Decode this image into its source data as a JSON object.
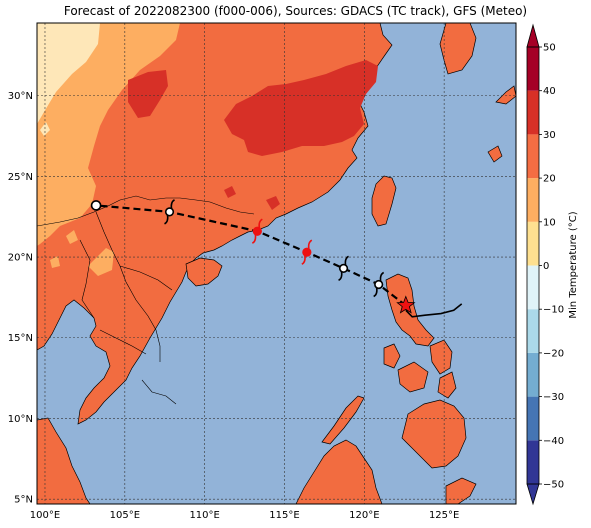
{
  "title": "Forecast of 2022082300 (f000-006), Sources: GDACS (TC track), GFS (Meteo)",
  "map": {
    "lon_range": [
      99.5,
      129.5
    ],
    "lat_range": [
      4.7,
      34.5
    ],
    "lon_ticks": [
      100,
      105,
      110,
      115,
      120,
      125
    ],
    "lon_tick_labels": [
      "100°E",
      "105°E",
      "110°E",
      "115°E",
      "120°E",
      "125°E"
    ],
    "lat_ticks": [
      5,
      10,
      15,
      20,
      25,
      30
    ],
    "lat_tick_labels": [
      "5°N",
      "10°N",
      "15°N",
      "20°N",
      "25°N",
      "30°N"
    ],
    "grid": true,
    "ocean_color": "#92b3d8"
  },
  "colorbar": {
    "label": "Min Temperature (°C)",
    "ticks": [
      -50,
      -40,
      -30,
      -20,
      -10,
      0,
      10,
      20,
      30,
      40,
      50
    ],
    "tick_labels": [
      "−50",
      "−40",
      "−30",
      "−20",
      "−10",
      "0",
      "10",
      "20",
      "30",
      "40",
      "50"
    ],
    "colors": [
      "#313695",
      "#4575b4",
      "#74add1",
      "#abd9e9",
      "#e0f3f8",
      "#ffffbf",
      "#fee090",
      "#fdae61",
      "#f46d43",
      "#d73027",
      "#a50026"
    ]
  },
  "track": {
    "past": [
      [
        126.1,
        17.1
      ],
      [
        125.6,
        16.7
      ],
      [
        124.8,
        16.5
      ],
      [
        123.8,
        16.4
      ],
      [
        123.0,
        16.3
      ],
      [
        122.6,
        16.7
      ]
    ],
    "forecast": [
      [
        122.6,
        17.0
      ],
      [
        120.9,
        18.3
      ],
      [
        118.7,
        19.3
      ],
      [
        116.4,
        20.3
      ],
      [
        113.3,
        21.6
      ],
      [
        107.8,
        22.8
      ],
      [
        103.2,
        23.2
      ]
    ],
    "current_position": [
      122.6,
      17.0
    ],
    "symbols": [
      {
        "lon": 120.9,
        "lat": 18.3,
        "kind": "depression",
        "color": "#ffffff"
      },
      {
        "lon": 118.7,
        "lat": 19.3,
        "kind": "depression",
        "color": "#ffffff"
      },
      {
        "lon": 116.4,
        "lat": 20.3,
        "kind": "storm",
        "color": "#ee1111"
      },
      {
        "lon": 113.3,
        "lat": 21.6,
        "kind": "storm",
        "color": "#ee1111"
      },
      {
        "lon": 107.8,
        "lat": 22.8,
        "kind": "depression",
        "color": "#ffffff"
      },
      {
        "lon": 103.2,
        "lat": 23.2,
        "kind": "low",
        "color": "#ffffff"
      }
    ]
  }
}
